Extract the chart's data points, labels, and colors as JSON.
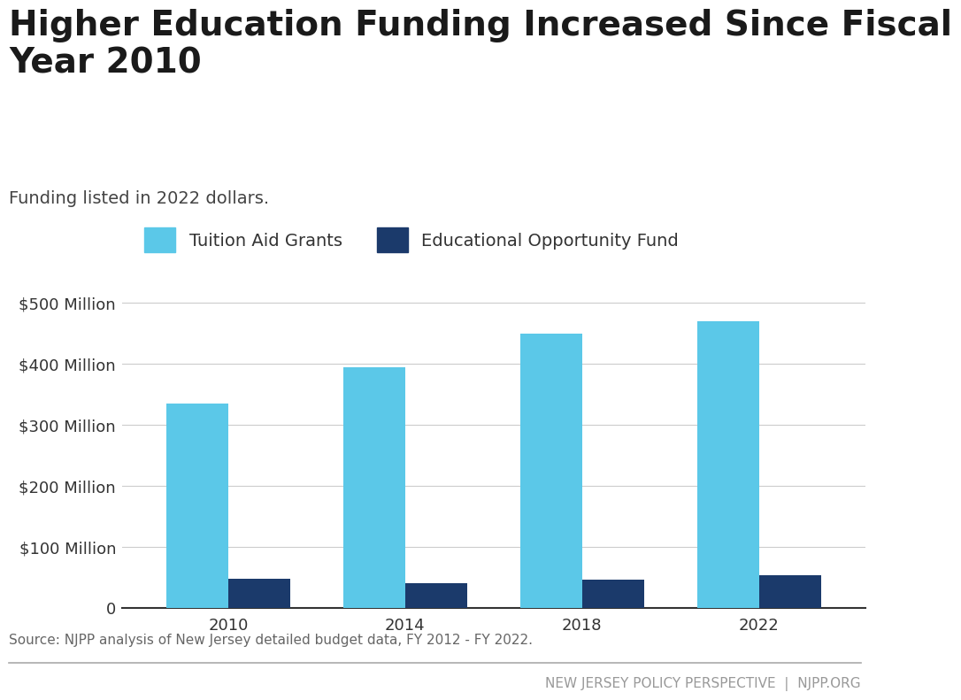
{
  "title": "Higher Education Funding Increased Since Fiscal\nYear 2010",
  "subtitle": "Funding listed in 2022 dollars.",
  "source": "Source: NJPP analysis of New Jersey detailed budget data, FY 2012 - FY 2022.",
  "footer": "NEW JERSEY POLICY PERSPECTIVE  |  NJPP.ORG",
  "years": [
    2010,
    2014,
    2018,
    2022
  ],
  "tuition_aid_grants": [
    335,
    395,
    450,
    470
  ],
  "educational_opportunity_fund": [
    48,
    40,
    47,
    53
  ],
  "color_tag": "#5BC8E8",
  "color_eof": "#1B3A6B",
  "bar_width": 0.35,
  "ylim": [
    0,
    560
  ],
  "yticks": [
    0,
    100,
    200,
    300,
    400,
    500
  ],
  "ytick_labels": [
    "0",
    "$100 Million",
    "$200 Million",
    "$300 Million",
    "$400 Million",
    "$500 Million"
  ],
  "legend_tag": "Tuition Aid Grants",
  "legend_eof": "Educational Opportunity Fund",
  "background_color": "#ffffff",
  "title_fontsize": 28,
  "subtitle_fontsize": 14,
  "tick_fontsize": 13,
  "legend_fontsize": 14,
  "source_fontsize": 11,
  "footer_fontsize": 11
}
